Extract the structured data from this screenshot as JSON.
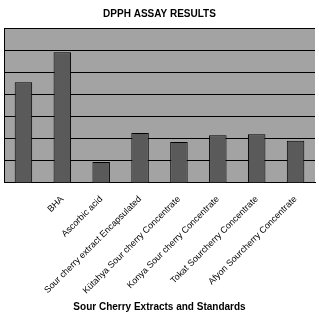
{
  "chart_data": {
    "type": "bar",
    "title": "DPPH ASSAY RESULTS",
    "x_label": "Sour Cherry Extracts and Standards",
    "categories": [
      null,
      "BHA",
      "Ascorbic acid",
      "Sour cherry extract Encapsulated",
      "Kütahya Sour cherry Concentrate",
      "Konya Sour cherry Concentrate",
      "Tokat Sourcherry Concentrate",
      "Afyon Sourcherry Concentrate"
    ],
    "values": [
      4.55,
      5.9,
      0.95,
      2.25,
      1.85,
      2.15,
      2.2,
      1.9
    ],
    "color": "#5a5a5a",
    "ylim": [
      0,
      7
    ],
    "yticks": [
      0,
      1,
      2,
      3,
      4,
      5,
      6,
      7
    ],
    "grid": true,
    "tick_labels": "x"
  }
}
